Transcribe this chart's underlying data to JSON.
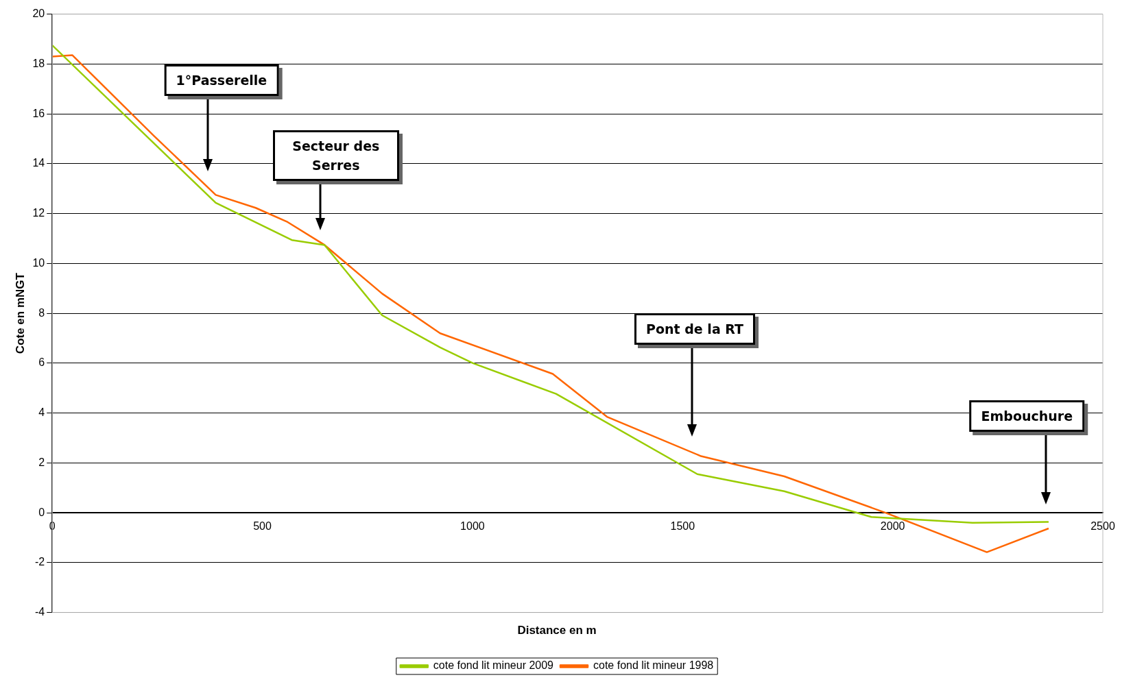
{
  "chart_data": {
    "type": "line",
    "xlabel": "Distance en m",
    "ylabel": "Cote en mNGT",
    "xlim": [
      0,
      2500
    ],
    "xticks": [
      0,
      500,
      1000,
      1500,
      2000,
      2500
    ],
    "ylim": [
      -4,
      20
    ],
    "yticks": [
      -4,
      -2,
      0,
      2,
      4,
      6,
      8,
      10,
      12,
      14,
      16,
      18,
      20
    ],
    "grid": "y",
    "legend": "bottom",
    "marker": "none",
    "line_style": "solid",
    "series": [
      {
        "name": "cote fond lit mineur 2009",
        "color": "#99cc00",
        "x": [
          0,
          389,
          570,
          648,
          785,
          923,
          1001,
          1199,
          1535,
          1742,
          1949,
          2190,
          2371
        ],
        "values": [
          18.75,
          12.43,
          10.94,
          10.74,
          7.92,
          6.63,
          6.0,
          4.77,
          1.55,
          0.86,
          -0.17,
          -0.4,
          -0.37
        ]
      },
      {
        "name": "cote fond lit mineur 1998",
        "color": "#ff6600",
        "x": [
          0,
          48,
          243,
          389,
          484,
          560,
          648,
          785,
          923,
          1191,
          1320,
          1544,
          1742,
          1983,
          2224,
          2371
        ],
        "values": [
          18.3,
          18.35,
          15.1,
          12.75,
          12.23,
          11.66,
          10.74,
          8.79,
          7.2,
          5.57,
          3.85,
          2.27,
          1.46,
          0.0,
          -1.58,
          -0.63
        ]
      }
    ],
    "annotations": [
      "1°Passerelle",
      "Secteur des Serres",
      "Pont de la RT",
      "Embouchure"
    ]
  }
}
